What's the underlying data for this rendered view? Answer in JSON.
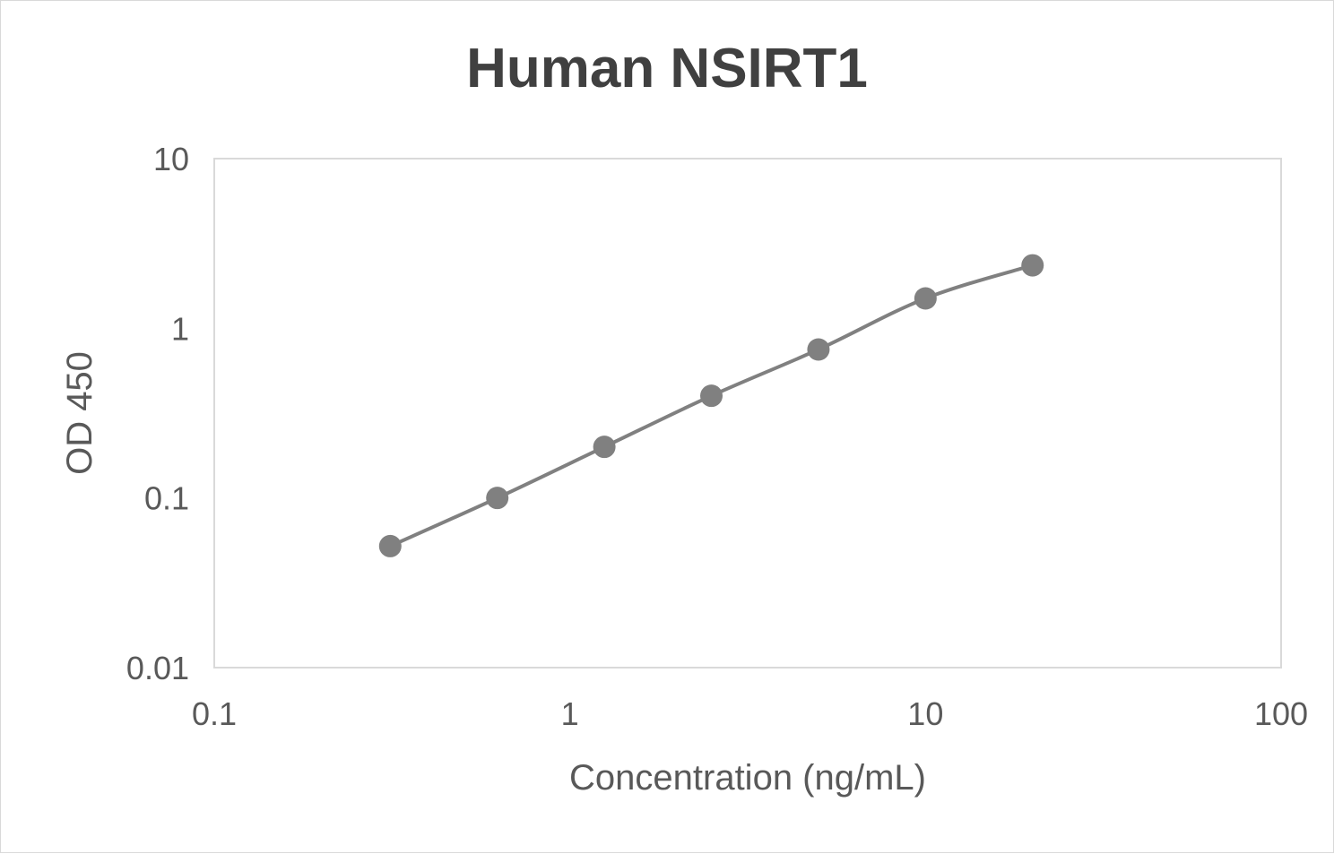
{
  "chart_data": {
    "type": "line",
    "title": "Human NSIRT1",
    "xlabel": "Concentration (ng/mL)",
    "ylabel": "OD 450",
    "x_scale": "log",
    "y_scale": "log",
    "xlim": [
      0.1,
      100
    ],
    "ylim": [
      0.01,
      10
    ],
    "x_ticks": [
      "0.1",
      "1",
      "10",
      "100"
    ],
    "y_ticks": [
      "0.01",
      "0.1",
      "1",
      "10"
    ],
    "grid": false,
    "legend": "none",
    "series": [
      {
        "x": [
          0.3125,
          0.625,
          1.25,
          2.5,
          5,
          10,
          20
        ],
        "y": [
          0.052,
          0.1,
          0.2,
          0.4,
          0.75,
          1.5,
          2.35
        ],
        "color": "#808080",
        "markers": true
      }
    ]
  }
}
